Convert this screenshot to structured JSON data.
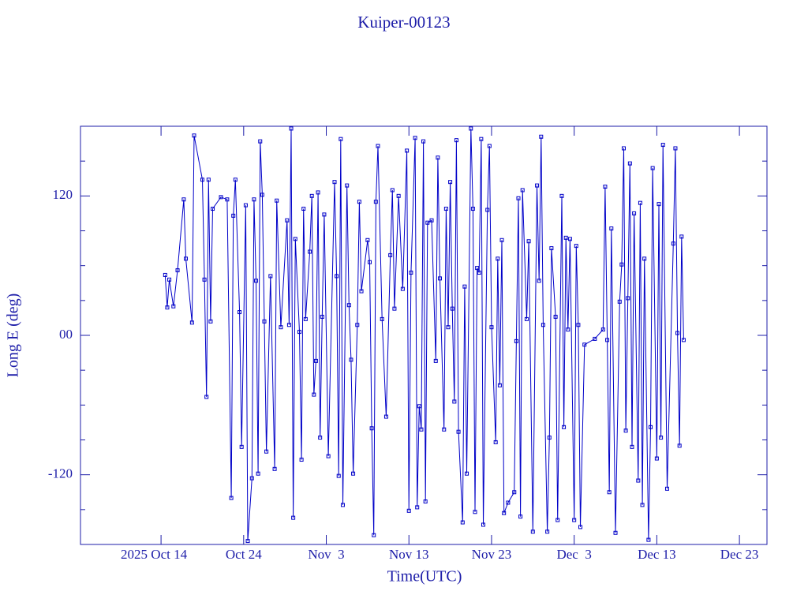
{
  "chart_data": {
    "type": "line",
    "title": "Kuiper-00123",
    "x_label": "Time(UTC)",
    "y_label": "Long E (deg)",
    "color": "#0000c8",
    "xlim": [
      "2025-10-04T06:00",
      "2025-12-26T08:00"
    ],
    "ylim": [
      -180,
      180
    ],
    "xticks": [
      {
        "value": "2025-10-14",
        "label": "2025 Oct 14"
      },
      {
        "value": "2025-10-24",
        "label": "Oct 24"
      },
      {
        "value": "2025-11-03",
        "label": "Nov  3"
      },
      {
        "value": "2025-11-13",
        "label": "Nov 13"
      },
      {
        "value": "2025-11-23",
        "label": "Nov 23"
      },
      {
        "value": "2025-12-03",
        "label": "Dec  3"
      },
      {
        "value": "2025-12-13",
        "label": "Dec 13"
      },
      {
        "value": "2025-12-23",
        "label": "Dec 23"
      }
    ],
    "yticks": [
      -120,
      {
        "value": 0,
        "label": "00"
      },
      120
    ],
    "yticks_minor": [
      -150,
      -90,
      -60,
      -30,
      30,
      60,
      90,
      150
    ],
    "x": [
      "2025-10-14T12:00",
      "2025-10-14T18:00",
      "2025-10-15T00:00",
      "2025-10-15T12:00",
      "2025-10-16T00:00",
      "2025-10-16T18:00",
      "2025-10-17T00:00",
      "2025-10-17T18:00",
      "2025-10-18T00:00",
      "2025-10-19T00:00",
      "2025-10-19T06:00",
      "2025-10-19T12:00",
      "2025-10-19T18:00",
      "2025-10-20T00:00",
      "2025-10-20T06:00",
      "2025-10-21T06:00",
      "2025-10-22T00:00",
      "2025-10-22T12:00",
      "2025-10-22T18:00",
      "2025-10-23T00:00",
      "2025-10-23T12:00",
      "2025-10-23T18:00",
      "2025-10-24T06:00",
      "2025-10-24T12:00",
      "2025-10-25T00:00",
      "2025-10-25T06:00",
      "2025-10-25T12:00",
      "2025-10-25T18:00",
      "2025-10-26T00:00",
      "2025-10-26T06:00",
      "2025-10-26T12:00",
      "2025-10-26T18:00",
      "2025-10-27T06:00",
      "2025-10-27T18:00",
      "2025-10-28T00:00",
      "2025-10-28T12:00",
      "2025-10-29T06:00",
      "2025-10-29T12:00",
      "2025-10-29T18:00",
      "2025-10-30T00:00",
      "2025-10-30T06:00",
      "2025-10-30T18:00",
      "2025-10-31T00:00",
      "2025-10-31T06:00",
      "2025-10-31T12:00",
      "2025-11-01T00:00",
      "2025-11-01T06:00",
      "2025-11-01T12:00",
      "2025-11-01T18:00",
      "2025-11-02T00:00",
      "2025-11-02T06:00",
      "2025-11-02T12:00",
      "2025-11-02T18:00",
      "2025-11-03T06:00",
      "2025-11-04T00:00",
      "2025-11-04T06:00",
      "2025-11-04T12:00",
      "2025-11-04T18:00",
      "2025-11-05T00:00",
      "2025-11-05T12:00",
      "2025-11-05T18:00",
      "2025-11-06T00:00",
      "2025-11-06T06:00",
      "2025-11-06T18:00",
      "2025-11-07T00:00",
      "2025-11-07T06:00",
      "2025-11-08T00:00",
      "2025-11-08T06:00",
      "2025-11-08T12:00",
      "2025-11-08T18:00",
      "2025-11-09T00:00",
      "2025-11-09T06:00",
      "2025-11-09T18:00",
      "2025-11-10T06:00",
      "2025-11-10T18:00",
      "2025-11-11T00:00",
      "2025-11-11T06:00",
      "2025-11-11T18:00",
      "2025-11-12T06:00",
      "2025-11-12T18:00",
      "2025-11-13T00:00",
      "2025-11-13T06:00",
      "2025-11-13T18:00",
      "2025-11-14T00:00",
      "2025-11-14T06:00",
      "2025-11-14T12:00",
      "2025-11-14T18:00",
      "2025-11-15T00:00",
      "2025-11-15T06:00",
      "2025-11-15T18:00",
      "2025-11-16T06:00",
      "2025-11-16T12:00",
      "2025-11-16T18:00",
      "2025-11-17T06:00",
      "2025-11-17T12:00",
      "2025-11-17T18:00",
      "2025-11-18T00:00",
      "2025-11-18T06:00",
      "2025-11-18T12:00",
      "2025-11-18T18:00",
      "2025-11-19T00:00",
      "2025-11-19T12:00",
      "2025-11-19T18:00",
      "2025-11-20T00:00",
      "2025-11-20T12:00",
      "2025-11-20T18:00",
      "2025-11-21T00:00",
      "2025-11-21T06:00",
      "2025-11-21T12:00",
      "2025-11-21T18:00",
      "2025-11-22T00:00",
      "2025-11-22T12:00",
      "2025-11-22T18:00",
      "2025-11-23T00:00",
      "2025-11-23T12:00",
      "2025-11-23T18:00",
      "2025-11-24T00:00",
      "2025-11-24T06:00",
      "2025-11-24T12:00",
      "2025-11-25T00:00",
      "2025-11-25T18:00",
      "2025-11-26T00:00",
      "2025-11-26T06:00",
      "2025-11-26T12:00",
      "2025-11-26T18:00",
      "2025-11-27T06:00",
      "2025-11-27T12:00",
      "2025-11-28T00:00",
      "2025-11-28T12:00",
      "2025-11-28T18:00",
      "2025-11-29T00:00",
      "2025-11-29T06:00",
      "2025-11-29T18:00",
      "2025-11-30T00:00",
      "2025-11-30T06:00",
      "2025-11-30T18:00",
      "2025-12-01T00:00",
      "2025-12-01T12:00",
      "2025-12-01T18:00",
      "2025-12-02T00:00",
      "2025-12-02T06:00",
      "2025-12-02T12:00",
      "2025-12-03T00:00",
      "2025-12-03T06:00",
      "2025-12-03T12:00",
      "2025-12-03T18:00",
      "2025-12-04T06:00",
      "2025-12-05T12:00",
      "2025-12-06T12:00",
      "2025-12-06T18:00",
      "2025-12-07T00:00",
      "2025-12-07T06:00",
      "2025-12-07T12:00",
      "2025-12-08T00:00",
      "2025-12-08T12:00",
      "2025-12-08T18:00",
      "2025-12-09T00:00",
      "2025-12-09T06:00",
      "2025-12-09T12:00",
      "2025-12-09T18:00",
      "2025-12-10T00:00",
      "2025-12-10T06:00",
      "2025-12-10T18:00",
      "2025-12-11T00:00",
      "2025-12-11T06:00",
      "2025-12-11T12:00",
      "2025-12-12T00:00",
      "2025-12-12T06:00",
      "2025-12-12T12:00",
      "2025-12-13T00:00",
      "2025-12-13T06:00",
      "2025-12-13T12:00",
      "2025-12-13T18:00",
      "2025-12-14T06:00",
      "2025-12-15T00:00",
      "2025-12-15T06:00",
      "2025-12-15T12:00",
      "2025-12-15T18:00",
      "2025-12-16T00:00",
      "2025-12-16T06:00"
    ],
    "values": [
      52,
      24,
      48,
      25,
      56,
      117,
      66,
      11,
      172,
      134,
      48,
      -53,
      134,
      12,
      109,
      119,
      117,
      -140,
      103,
      134,
      20,
      -96,
      112,
      -177,
      -123,
      117,
      47,
      -119,
      167,
      121,
      12,
      -100,
      51,
      -115,
      116,
      7,
      99,
      9,
      178,
      -157,
      83,
      3,
      -107,
      109,
      14,
      72,
      120,
      -51,
      -22,
      123,
      -88,
      16,
      104,
      -104,
      132,
      51,
      -121,
      169,
      -146,
      129,
      26,
      -21,
      -119,
      9,
      115,
      38,
      82,
      63,
      -80,
      -172,
      115,
      163,
      14,
      -70,
      69,
      125,
      23,
      120,
      40,
      159,
      -151,
      54,
      170,
      -148,
      -61,
      -81,
      167,
      -143,
      97,
      99,
      -22,
      153,
      49,
      -81,
      109,
      7,
      132,
      23,
      -57,
      168,
      -83,
      -161,
      42,
      -119,
      178,
      109,
      -152,
      58,
      54,
      169,
      -163,
      108,
      163,
      7,
      -92,
      66,
      -43,
      82,
      -153,
      -144,
      -135,
      -5,
      118,
      -156,
      125,
      14,
      81,
      -169,
      129,
      47,
      171,
      9,
      -169,
      -88,
      75,
      16,
      -159,
      120,
      -79,
      84,
      5,
      83,
      -159,
      77,
      9,
      -165,
      -8,
      -3,
      5,
      128,
      -4,
      -135,
      92,
      -170,
      29,
      61,
      161,
      -82,
      32,
      148,
      -96,
      105,
      -125,
      114,
      -146,
      66,
      -176,
      -79,
      144,
      -106,
      113,
      -88,
      164,
      -132,
      79,
      161,
      2,
      -95,
      85,
      -4
    ]
  }
}
